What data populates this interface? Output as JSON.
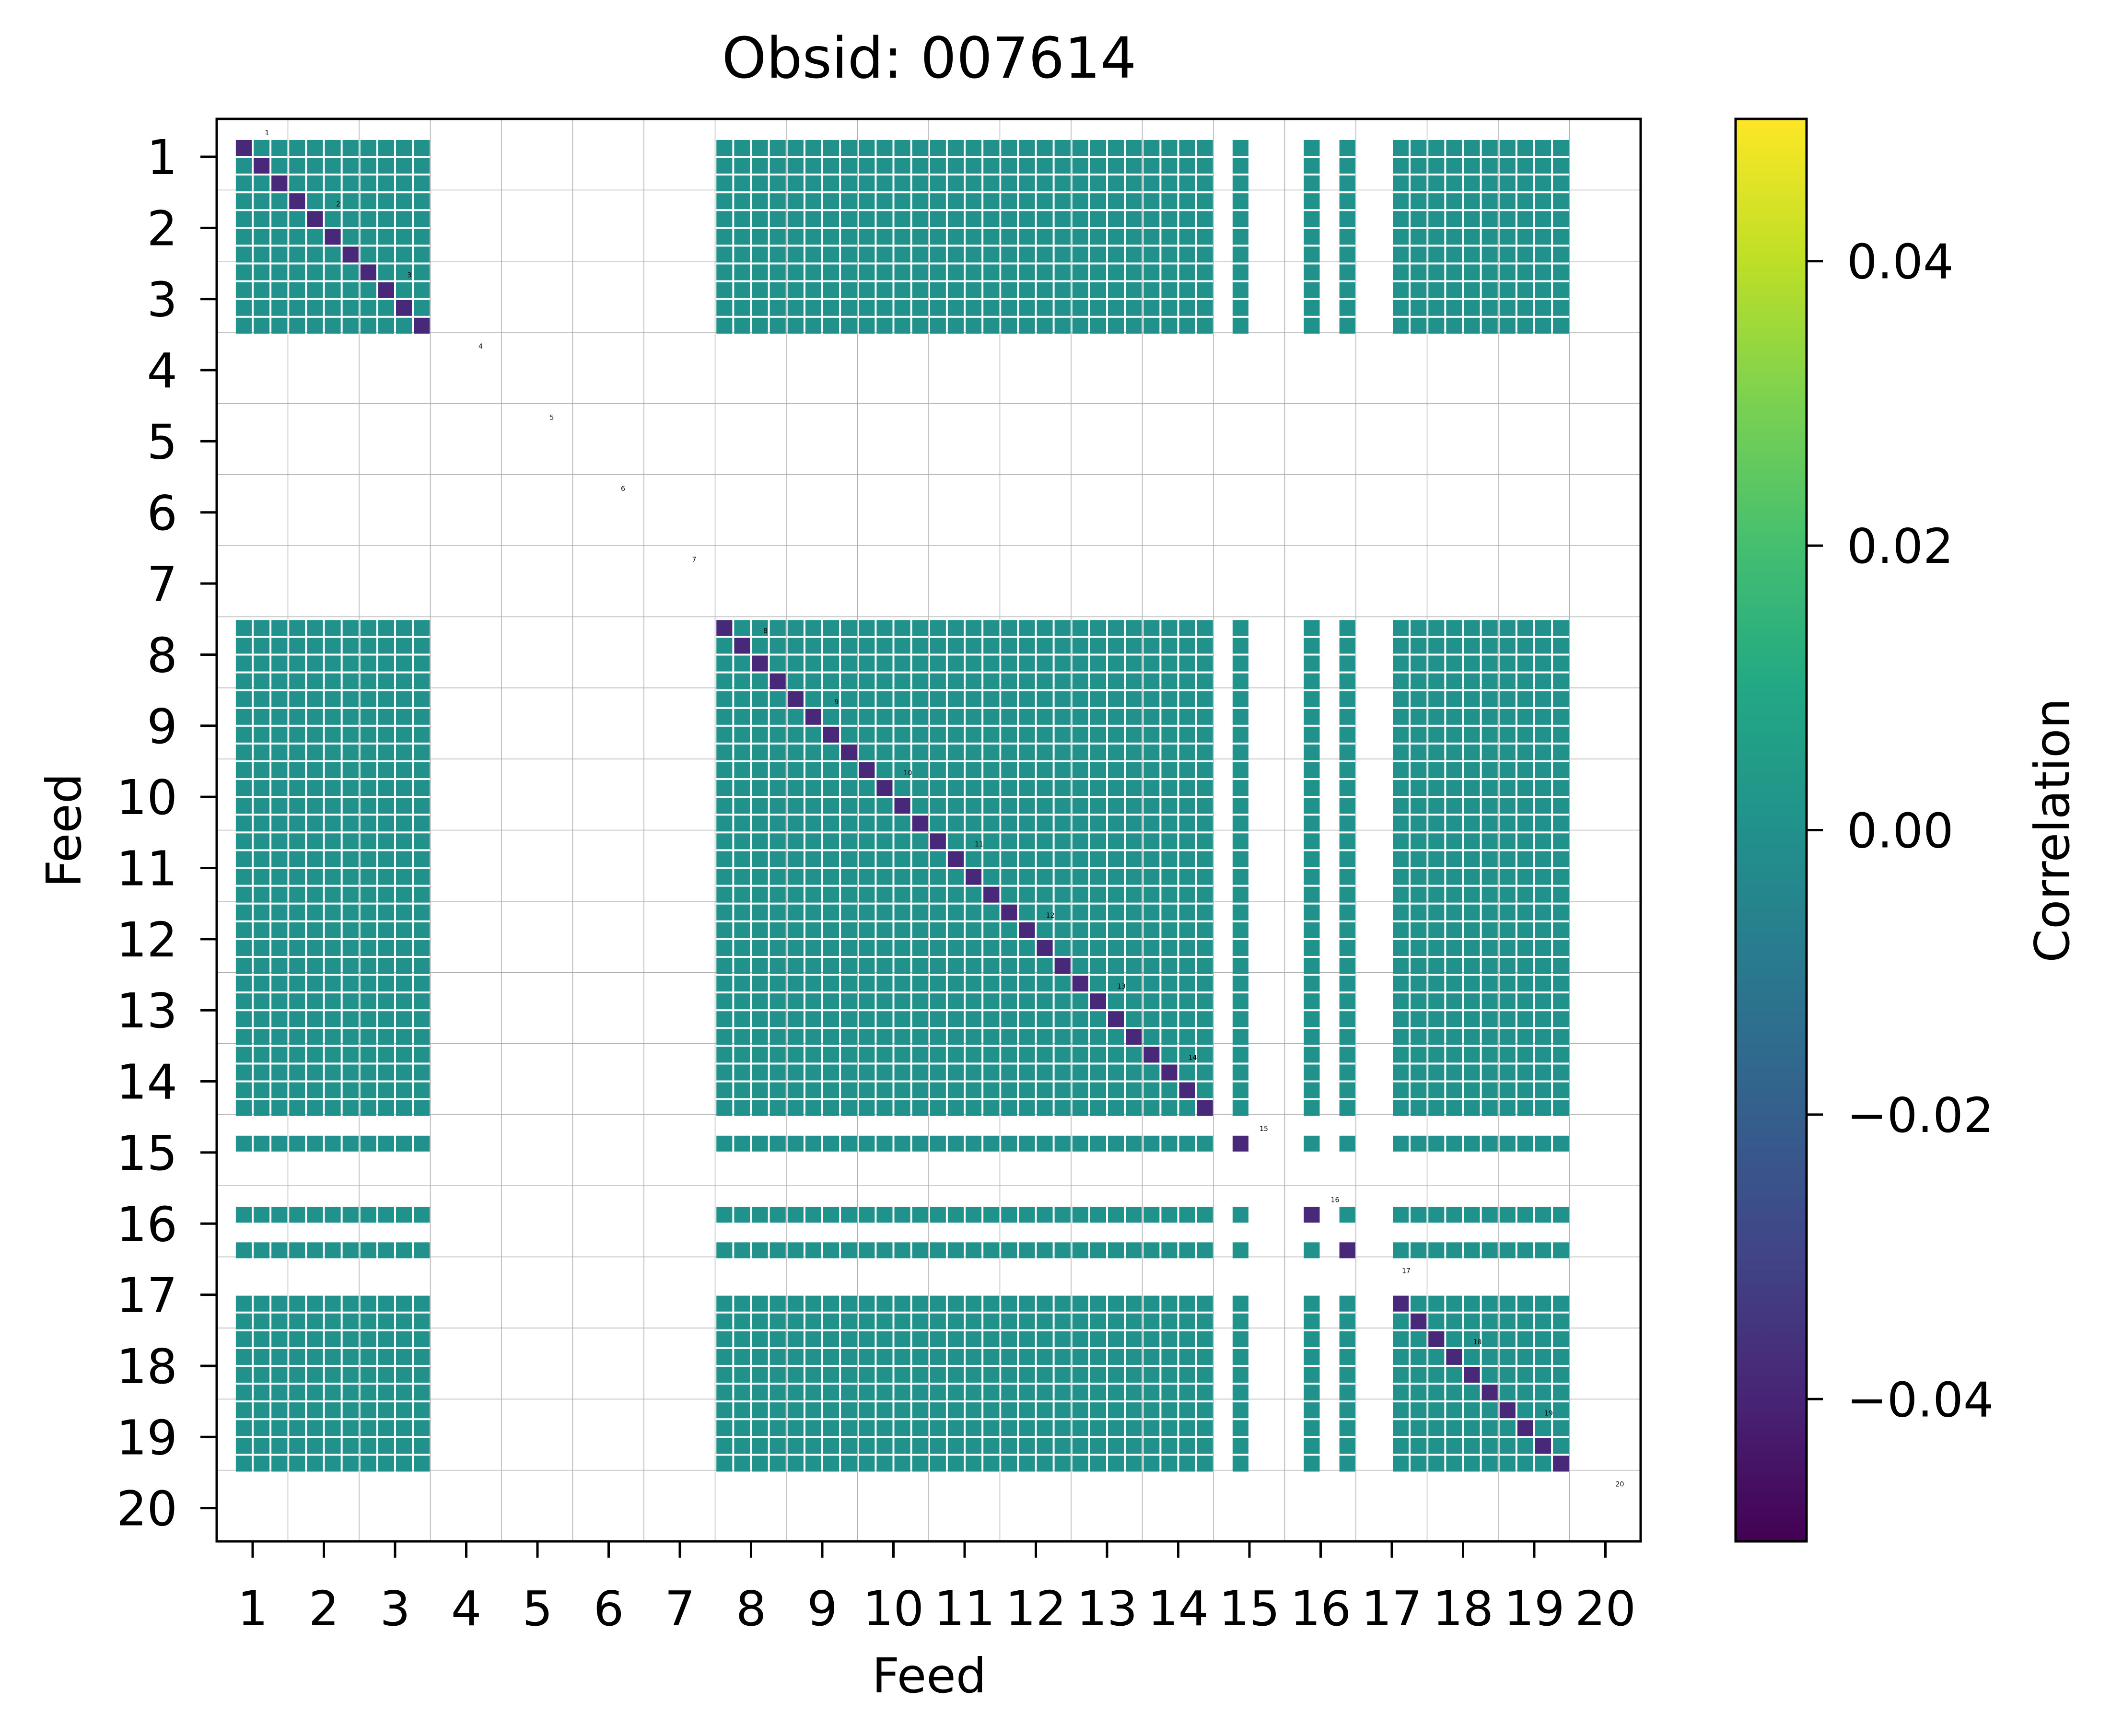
{
  "chart_data": {
    "type": "heatmap",
    "title": "Obsid: 007614",
    "xlabel": "Feed",
    "ylabel": "Feed",
    "x_ticks": [
      "1",
      "2",
      "3",
      "4",
      "5",
      "6",
      "7",
      "8",
      "9",
      "10",
      "11",
      "12",
      "13",
      "14",
      "15",
      "16",
      "17",
      "18",
      "19",
      "20"
    ],
    "y_ticks": [
      "1",
      "2",
      "3",
      "4",
      "5",
      "6",
      "7",
      "8",
      "9",
      "10",
      "11",
      "12",
      "13",
      "14",
      "15",
      "16",
      "17",
      "18",
      "19",
      "20"
    ],
    "n_feeds": 20,
    "sidebands_per_feed": 4,
    "cell_value": 0.0,
    "diagonal_value": -0.05,
    "active_feeds": [
      1,
      2,
      3,
      8,
      9,
      10,
      11,
      12,
      13,
      14,
      15,
      16,
      17,
      18,
      19
    ],
    "feed_sideband_masks": {
      "1": [
        0,
        1,
        1,
        1
      ],
      "2": [
        1,
        1,
        1,
        1
      ],
      "3": [
        1,
        1,
        1,
        1
      ],
      "8": [
        1,
        1,
        1,
        1
      ],
      "9": [
        1,
        1,
        1,
        1
      ],
      "10": [
        1,
        1,
        1,
        1
      ],
      "11": [
        1,
        1,
        1,
        1
      ],
      "12": [
        1,
        1,
        1,
        1
      ],
      "13": [
        1,
        1,
        1,
        1
      ],
      "14": [
        1,
        1,
        1,
        1
      ],
      "15": [
        0,
        1,
        0,
        0
      ],
      "16": [
        0,
        1,
        0,
        1
      ],
      "17": [
        0,
        0,
        1,
        1
      ],
      "18": [
        1,
        1,
        1,
        1
      ],
      "19": [
        1,
        1,
        1,
        1
      ]
    },
    "diagonal_labels": [
      "1",
      "2",
      "3",
      "4",
      "5",
      "6",
      "7",
      "8",
      "9",
      "10",
      "11",
      "12",
      "13",
      "14",
      "15",
      "16",
      "17",
      "18",
      "19",
      "20"
    ],
    "colorbar": {
      "label": "Correlation",
      "vmin": -0.05,
      "vmax": 0.05,
      "ticks": [
        "0.04",
        "0.02",
        "0.00",
        "−0.02",
        "−0.04"
      ],
      "tick_values": [
        0.04,
        0.02,
        0.0,
        -0.02,
        -0.04
      ],
      "colormap": "viridis"
    },
    "grid": true,
    "colors": {
      "cell": "#21918c",
      "diagonal": "#482878",
      "grid": "#b0b0b0"
    }
  }
}
